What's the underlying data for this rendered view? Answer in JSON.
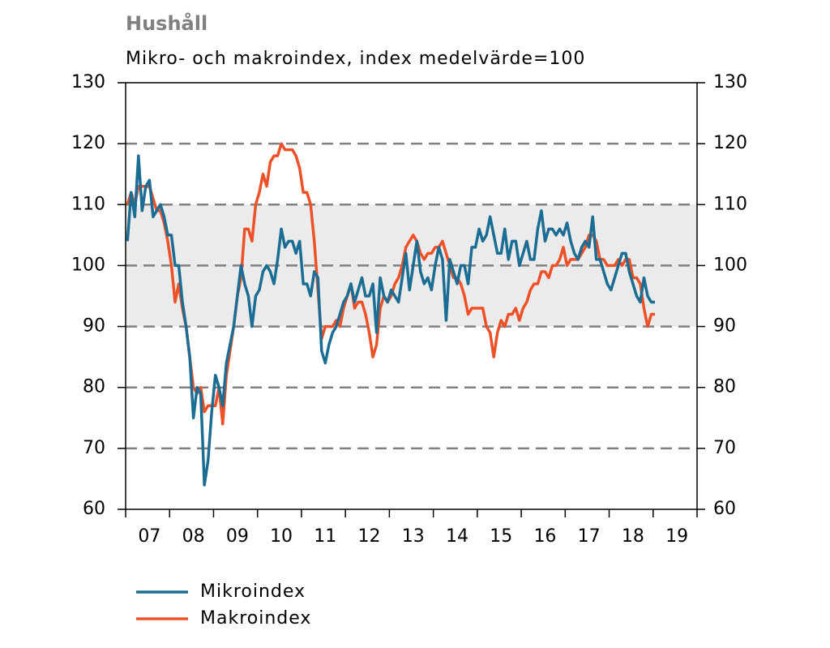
{
  "chart_data": {
    "type": "line",
    "title": "Hushåll",
    "subtitle": "Mikro- och makroindex, index medelvärde=100",
    "categories": [
      null,
      null,
      null,
      null,
      null,
      null,
      "07",
      null,
      null,
      null,
      null,
      null,
      null,
      null,
      null,
      null,
      null,
      null,
      "08",
      null,
      null,
      null,
      null,
      null,
      null,
      null,
      null,
      null,
      null,
      null,
      "09",
      null,
      null,
      null,
      null,
      null,
      null,
      null,
      null,
      null,
      null,
      null,
      "10",
      null,
      null,
      null,
      null,
      null,
      null,
      null,
      null,
      null,
      null,
      null,
      "11",
      null,
      null,
      null,
      null,
      null,
      null,
      null,
      null,
      null,
      null,
      null,
      "12",
      null,
      null,
      null,
      null,
      null,
      null,
      null,
      null,
      null,
      null,
      null,
      "13",
      null,
      null,
      null,
      null,
      null,
      null,
      null,
      null,
      null,
      null,
      null,
      "14",
      null,
      null,
      null,
      null,
      null,
      null,
      null,
      null,
      null,
      null,
      null,
      "15",
      null,
      null,
      null,
      null,
      null,
      null,
      null,
      null,
      null,
      null,
      null,
      "16",
      null,
      null,
      null,
      null,
      null,
      null,
      null,
      null,
      null,
      null,
      null,
      "17",
      null,
      null,
      null,
      null,
      null,
      null,
      null,
      null,
      null,
      null,
      null,
      "18",
      null,
      null,
      null,
      null,
      null,
      null,
      null,
      null,
      null,
      null,
      null,
      "19",
      null,
      null,
      null,
      null,
      null
    ],
    "series": [
      {
        "name": "Mikroindex",
        "color": "#1b6d93",
        "values": [
          104,
          112,
          108,
          118,
          109,
          113,
          114,
          108,
          109,
          110,
          108,
          105,
          105,
          100,
          100,
          94,
          90,
          85,
          75,
          80,
          79,
          64,
          68,
          76,
          82,
          80,
          77,
          84,
          87,
          90,
          95,
          100,
          97,
          95,
          90,
          95,
          96,
          99,
          100,
          99,
          97,
          101,
          106,
          103,
          104,
          104,
          102,
          104,
          97,
          97,
          95,
          99,
          98,
          86,
          84,
          87,
          89,
          90,
          92,
          94,
          95,
          97,
          94,
          96,
          98,
          95,
          95,
          97,
          89,
          98,
          95,
          94,
          96,
          95,
          94,
          98,
          102,
          96,
          100,
          104,
          99,
          97,
          98,
          96,
          100,
          103,
          101,
          91,
          101,
          99,
          97,
          100,
          100,
          97,
          103,
          103,
          106,
          104,
          105,
          108,
          105,
          102,
          102,
          106,
          101,
          104,
          104,
          100,
          102,
          104,
          101,
          101,
          106,
          109,
          104,
          106,
          106,
          105,
          106,
          105,
          107,
          104,
          102,
          101,
          103,
          104,
          103,
          108,
          101,
          101,
          99,
          97,
          96,
          98,
          100,
          102,
          102,
          99,
          97,
          95,
          94,
          98,
          95,
          94,
          94,
          null,
          null,
          null,
          null,
          null,
          null,
          null,
          null,
          null,
          null,
          null
        ]
      },
      {
        "name": "Makroindex",
        "color": "#ee5128",
        "values": [
          110,
          112,
          110,
          113,
          113,
          113,
          113,
          111,
          109,
          109,
          107,
          104,
          100,
          94,
          97,
          93,
          90,
          85,
          80,
          79,
          80,
          76,
          77,
          77,
          77,
          80,
          74,
          82,
          86,
          90,
          95,
          98,
          106,
          106,
          104,
          110,
          112,
          115,
          113,
          117,
          118,
          118,
          120,
          119,
          119,
          119,
          118,
          116,
          112,
          112,
          110,
          104,
          96,
          88,
          90,
          90,
          90,
          91,
          90,
          93,
          95,
          97,
          93,
          94,
          94,
          92,
          89,
          85,
          87,
          93,
          95,
          94,
          95,
          97,
          98,
          100,
          103,
          104,
          105,
          104,
          102,
          101,
          102,
          102,
          103,
          103,
          104,
          102,
          100,
          98,
          98,
          97,
          95,
          92,
          93,
          93,
          93,
          93,
          90,
          89,
          85,
          89,
          91,
          90,
          92,
          92,
          93,
          91,
          93,
          94,
          96,
          97,
          97,
          99,
          99,
          98,
          100,
          100,
          101,
          103,
          100,
          101,
          101,
          101,
          102,
          103,
          105,
          105,
          104,
          101,
          101,
          100,
          100,
          100,
          101,
          100,
          101,
          101,
          98,
          98,
          97,
          93,
          90,
          92,
          92,
          null,
          null,
          null,
          null,
          null,
          null,
          null,
          null,
          null,
          null,
          null
        ]
      }
    ],
    "ylim": [
      60,
      130
    ],
    "yticks": [
      60,
      70,
      80,
      90,
      100,
      110,
      120,
      130
    ],
    "y2lim": [
      60,
      130
    ],
    "y2ticks": [
      60,
      70,
      80,
      90,
      100,
      110,
      120,
      130
    ],
    "shaded_range": [
      90,
      110
    ],
    "grid": true,
    "legend": "bottom"
  }
}
